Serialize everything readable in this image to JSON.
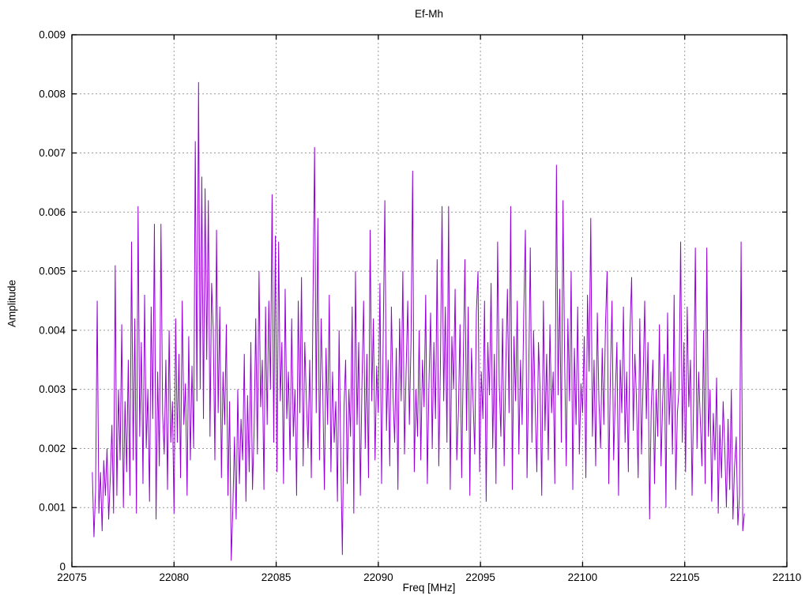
{
  "chart_data": {
    "type": "line",
    "title": "Ef-Mh",
    "xlabel": "Freq [MHz]",
    "ylabel": "Amplitude",
    "xlim": [
      22075,
      22110
    ],
    "ylim": [
      0,
      0.009
    ],
    "xticks": [
      22075,
      22080,
      22085,
      22090,
      22095,
      22100,
      22105,
      22110
    ],
    "xtick_labels": [
      "22075",
      "22080",
      "22085",
      "22090",
      "22095",
      "22100",
      "22105",
      "22110"
    ],
    "yticks": [
      0,
      0.001,
      0.002,
      0.003,
      0.004,
      0.005,
      0.006,
      0.007,
      0.008,
      0.009
    ],
    "ytick_labels": [
      "0",
      "0.001",
      "0.002",
      "0.003",
      "0.004",
      "0.005",
      "0.006",
      "0.007",
      "0.008",
      "0.009"
    ],
    "grid": true,
    "legend": "none",
    "line_color": "#9400d3",
    "grid_color": "#9c9c9c",
    "border_color": "#000000",
    "x_start": 22076.0,
    "x_step": 0.08,
    "value_scale": 0.0001,
    "values": [
      16,
      5,
      13,
      45,
      9,
      16,
      6,
      18,
      12,
      20,
      8,
      15,
      24,
      9,
      51,
      12,
      30,
      18,
      41,
      10,
      28,
      16,
      35,
      12,
      55,
      18,
      42,
      9,
      61,
      22,
      38,
      14,
      46,
      20,
      30,
      11,
      44,
      25,
      58,
      8,
      33,
      17,
      58,
      26,
      19,
      35,
      13,
      40,
      21,
      28,
      9,
      42,
      21,
      36,
      15,
      45,
      24,
      31,
      12,
      39,
      18,
      34,
      20,
      72,
      28,
      82,
      30,
      66,
      25,
      64,
      35,
      62,
      22,
      48,
      40,
      18,
      57,
      26,
      44,
      15,
      33,
      24,
      41,
      12,
      28,
      1,
      10,
      22,
      8,
      30,
      14,
      25,
      18,
      36,
      11,
      29,
      16,
      38,
      13,
      23,
      42,
      19,
      50,
      27,
      35,
      13,
      44,
      24,
      45,
      30,
      63,
      21,
      56,
      16,
      55,
      28,
      38,
      14,
      47,
      25,
      33,
      18,
      42,
      22,
      30,
      12,
      45,
      26,
      49,
      17,
      38,
      28,
      20,
      35,
      15,
      44,
      71,
      26,
      59,
      18,
      42,
      30,
      13,
      37,
      24,
      46,
      16,
      33,
      21,
      28,
      11,
      40,
      19,
      2,
      27,
      35,
      14,
      30,
      22,
      44,
      9,
      50,
      24,
      38,
      12,
      31,
      45,
      20,
      36,
      15,
      57,
      28,
      42,
      18,
      34,
      26,
      48,
      14,
      39,
      62,
      23,
      35,
      17,
      44,
      29,
      21,
      37,
      13,
      42,
      28,
      50,
      19,
      33,
      45,
      24,
      38,
      67,
      16,
      30,
      22,
      40,
      18,
      35,
      27,
      46,
      14,
      31,
      43,
      20,
      38,
      25,
      52,
      17,
      34,
      61,
      28,
      44,
      21,
      61,
      13,
      39,
      30,
      47,
      18,
      26,
      41,
      15,
      35,
      52,
      23,
      44,
      12,
      37,
      28,
      19,
      43,
      50,
      16,
      33,
      25,
      45,
      11,
      38,
      29,
      48,
      20,
      36,
      14,
      55,
      31,
      22,
      42,
      17,
      34,
      47,
      26,
      61,
      13,
      39,
      28,
      45,
      19,
      35,
      24,
      43,
      57,
      15,
      32,
      54,
      21,
      40,
      27,
      16,
      38,
      30,
      12,
      45,
      23,
      36,
      18,
      41,
      26,
      33,
      14,
      68,
      29,
      47,
      21,
      62,
      35,
      17,
      42,
      28,
      50,
      13,
      37,
      24,
      44,
      19,
      31,
      26,
      39,
      15,
      46,
      33,
      59,
      22,
      35,
      17,
      43,
      28,
      20,
      37,
      24,
      41,
      50,
      14,
      32,
      45,
      18,
      29,
      38,
      12,
      35,
      26,
      44,
      21,
      33,
      16,
      40,
      49,
      23,
      36,
      28,
      15,
      42,
      19,
      31,
      45,
      25,
      38,
      8,
      27,
      35,
      14,
      30,
      22,
      41,
      17,
      28,
      36,
      10,
      43,
      24,
      33,
      19,
      46,
      13,
      26,
      30,
      55,
      21,
      38,
      16,
      44,
      27,
      35,
      12,
      29,
      54,
      20,
      33,
      25,
      17,
      40,
      14,
      54,
      22,
      30,
      11,
      26,
      18,
      32,
      9,
      24,
      15,
      28,
      20,
      10,
      25,
      13,
      30,
      8,
      17,
      22,
      7,
      12,
      55,
      6,
      9
    ]
  }
}
